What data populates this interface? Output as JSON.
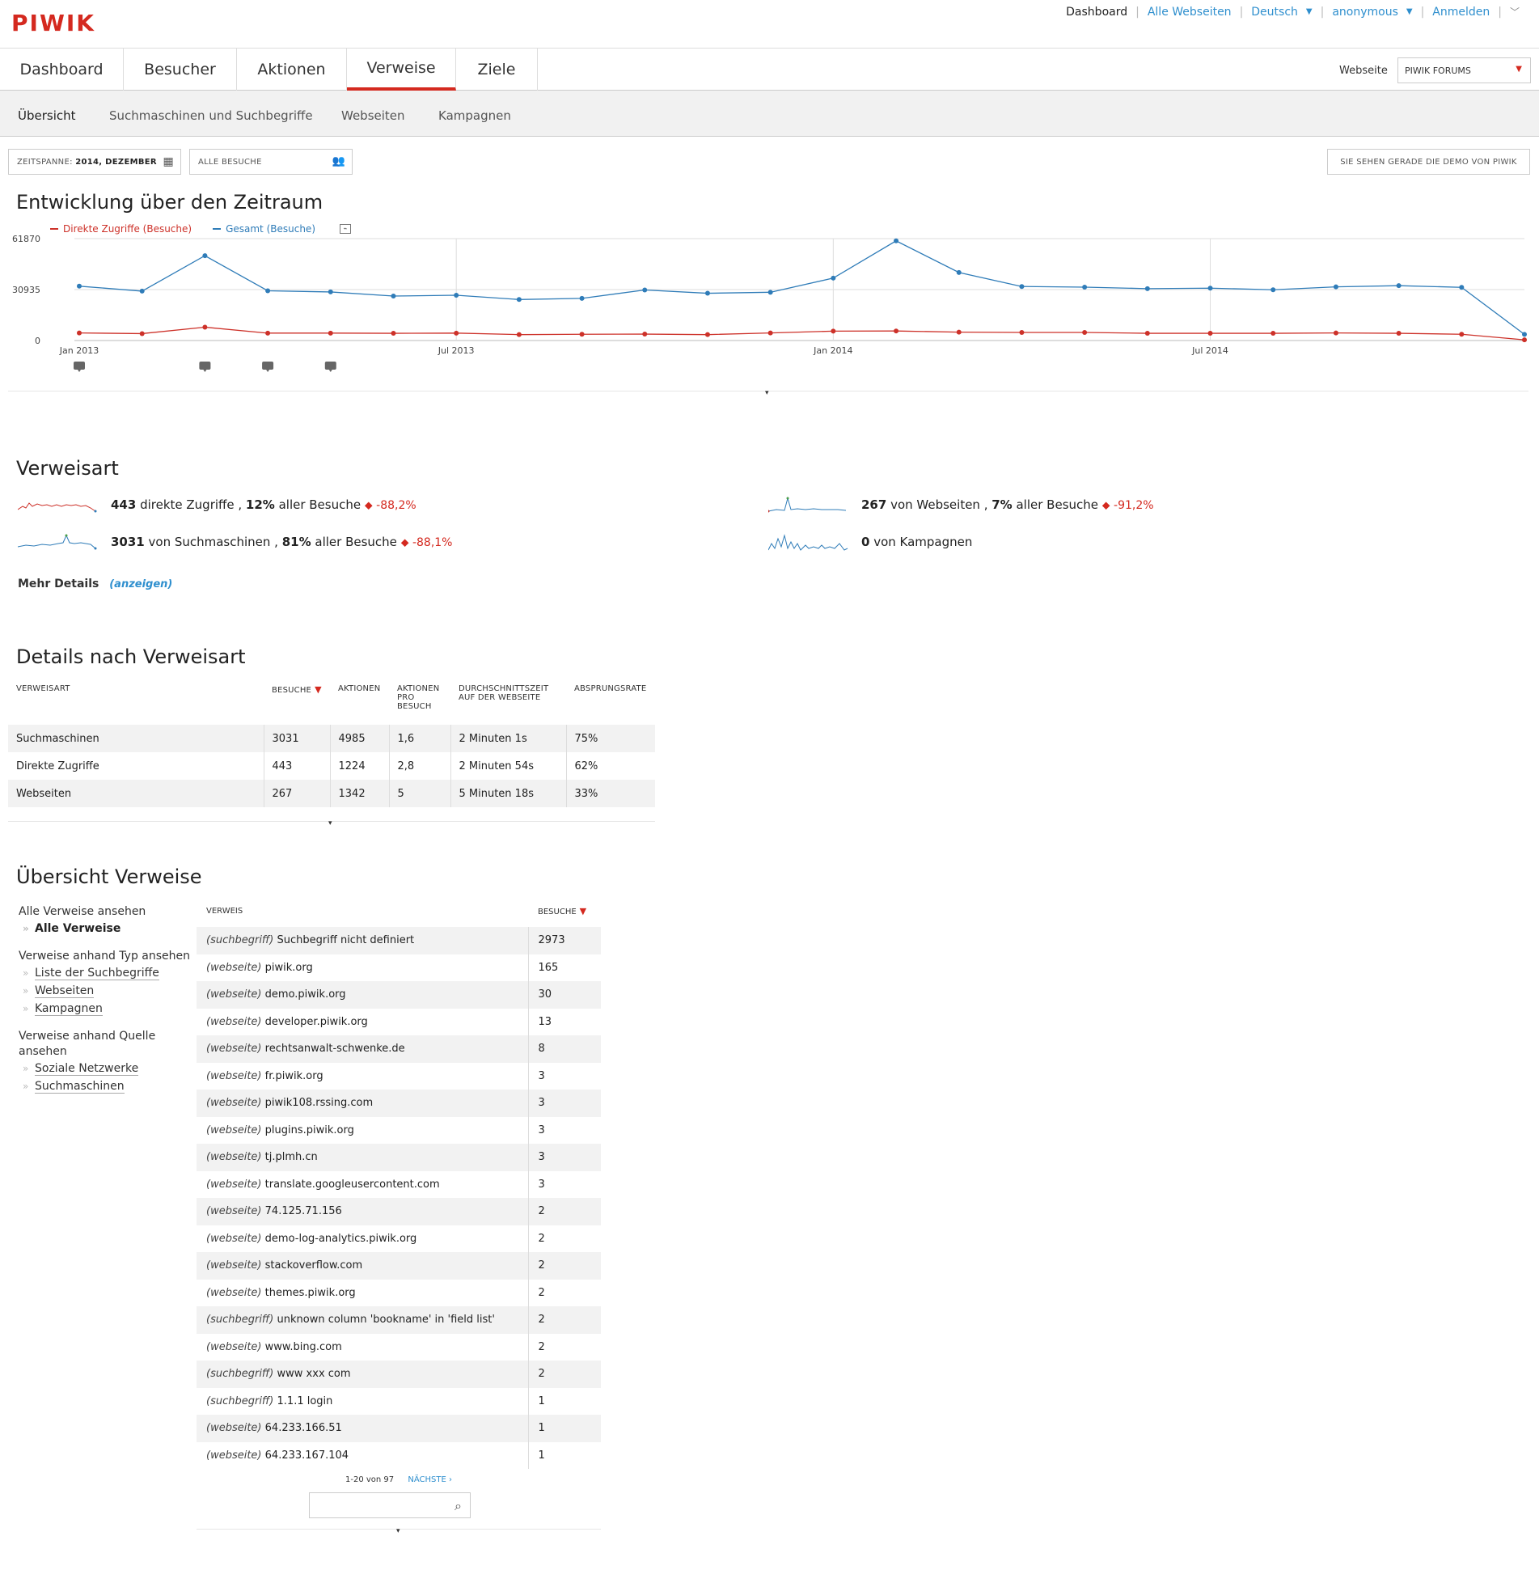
{
  "logo": "PIWIK",
  "toplinks": {
    "dashboard": "Dashboard",
    "all_sites": "Alle Webseiten",
    "language": "Deutsch",
    "user": "anonymous",
    "login": "Anmelden"
  },
  "mainnav": {
    "tabs": [
      {
        "label": "Dashboard"
      },
      {
        "label": "Besucher"
      },
      {
        "label": "Aktionen"
      },
      {
        "label": "Verweise"
      },
      {
        "label": "Ziele"
      }
    ],
    "active": "Verweise",
    "site_label": "Webseite",
    "site_value": "PIWIK FORUMS"
  },
  "subnav": {
    "items": [
      {
        "label": "Übersicht"
      },
      {
        "label": "Suchmaschinen und Suchbegriffe"
      },
      {
        "label": "Webseiten"
      },
      {
        "label": "Kampagnen"
      }
    ],
    "active": "Übersicht"
  },
  "period": {
    "label": "ZEITSPANNE:",
    "value": "2014, DEZEMBER",
    "segment": "ALLE BESUCHE",
    "demo_button": "SIE SEHEN GERADE DIE DEMO VON PIWIK"
  },
  "evolution": {
    "title": "Entwicklung über den Zeitraum"
  },
  "chart_data": {
    "type": "line",
    "x": [
      "Jan 2013",
      "Feb 2013",
      "Mar 2013",
      "Apr 2013",
      "May 2013",
      "Jun 2013",
      "Jul 2013",
      "Aug 2013",
      "Sep 2013",
      "Oct 2013",
      "Nov 2013",
      "Dec 2013",
      "Jan 2014",
      "Feb 2014",
      "Mar 2014",
      "Apr 2014",
      "May 2014",
      "Jun 2014",
      "Jul 2014",
      "Aug 2014",
      "Sep 2014",
      "Oct 2014",
      "Nov 2014",
      "Dec 2014"
    ],
    "x_tick_labels": [
      "Jan 2013",
      "Jul 2013",
      "Jan 2014",
      "Jul 2014"
    ],
    "y_tick_labels": [
      "61870",
      "30935",
      "0"
    ],
    "ylim": [
      0,
      61870
    ],
    "grid": true,
    "series": [
      {
        "name": "Direkte Zugriffe (Besuche)",
        "color": "#cd3129",
        "values": [
          4600,
          4200,
          8100,
          4500,
          4500,
          4400,
          4500,
          3600,
          3800,
          3900,
          3600,
          4600,
          5700,
          5800,
          5100,
          4900,
          4900,
          4400,
          4400,
          4400,
          4600,
          4400,
          3800,
          443
        ]
      },
      {
        "name": "Gesamt (Besuche)",
        "color": "#2f7cb8",
        "values": [
          33000,
          30000,
          51500,
          30200,
          29500,
          27000,
          27500,
          24900,
          25600,
          30700,
          28700,
          29300,
          37900,
          60500,
          41300,
          32800,
          32400,
          31500,
          31800,
          30800,
          32600,
          33300,
          32300,
          3741
        ]
      }
    ],
    "annotation_markers_at": [
      "Jan 2013",
      "Mar 2013",
      "Apr 2013",
      "May 2013"
    ]
  },
  "verweisart": {
    "title": "Verweisart",
    "items": [
      {
        "count": "443",
        "text": " direkte Zugriffe , ",
        "pct": "12%",
        "text2": " aller Besuche ",
        "change": "-88,2%"
      },
      {
        "count": "3031",
        "text": " von Suchmaschinen , ",
        "pct": "81%",
        "text2": " aller Besuche ",
        "change": "-88,1%"
      },
      {
        "count": "267",
        "text": " von Webseiten , ",
        "pct": "7%",
        "text2": " aller Besuche ",
        "change": "-91,2%"
      },
      {
        "count": "0",
        "text": " von Kampagnen",
        "pct": "",
        "text2": "",
        "change": ""
      }
    ],
    "more": "Mehr Details",
    "more_link": "(anzeigen)"
  },
  "details": {
    "title": "Details nach Verweisart",
    "headers": [
      "VERWEISART",
      "BESUCHE",
      "AKTIONEN",
      "AKTIONEN PRO BESUCH",
      "DURCHSCHNITTSZEIT AUF DER WEBSEITE",
      "ABSPRUNGSRATE"
    ],
    "rows": [
      [
        "Suchmaschinen",
        "3031",
        "4985",
        "1,6",
        "2 Minuten 1s",
        "75%"
      ],
      [
        "Direkte Zugriffe",
        "443",
        "1224",
        "2,8",
        "2 Minuten 54s",
        "62%"
      ],
      [
        "Webseiten",
        "267",
        "1342",
        "5",
        "5 Minuten 18s",
        "33%"
      ]
    ]
  },
  "overview": {
    "title": "Übersicht Verweise",
    "side": {
      "g1": "Alle Verweise ansehen",
      "g1_items": [
        "Alle Verweise"
      ],
      "g2": "Verweise anhand Typ ansehen",
      "g2_items": [
        "Liste der Suchbegriffe",
        "Webseiten",
        "Kampagnen"
      ],
      "g3": "Verweise anhand Quelle ansehen",
      "g3_items": [
        "Soziale Netzwerke",
        "Suchmaschinen"
      ]
    },
    "headers": [
      "VERWEIS",
      "BESUCHE"
    ],
    "rows": [
      {
        "type": "(suchbegriff)",
        "name": "Suchbegriff nicht definiert",
        "visits": "2973"
      },
      {
        "type": "(webseite)",
        "name": "piwik.org",
        "visits": "165"
      },
      {
        "type": "(webseite)",
        "name": "demo.piwik.org",
        "visits": "30"
      },
      {
        "type": "(webseite)",
        "name": "developer.piwik.org",
        "visits": "13"
      },
      {
        "type": "(webseite)",
        "name": "rechtsanwalt-schwenke.de",
        "visits": "8"
      },
      {
        "type": "(webseite)",
        "name": "fr.piwik.org",
        "visits": "3"
      },
      {
        "type": "(webseite)",
        "name": "piwik108.rssing.com",
        "visits": "3"
      },
      {
        "type": "(webseite)",
        "name": "plugins.piwik.org",
        "visits": "3"
      },
      {
        "type": "(webseite)",
        "name": "tj.plmh.cn",
        "visits": "3"
      },
      {
        "type": "(webseite)",
        "name": "translate.googleusercontent.com",
        "visits": "3"
      },
      {
        "type": "(webseite)",
        "name": "74.125.71.156",
        "visits": "2"
      },
      {
        "type": "(webseite)",
        "name": "demo-log-analytics.piwik.org",
        "visits": "2"
      },
      {
        "type": "(webseite)",
        "name": "stackoverflow.com",
        "visits": "2"
      },
      {
        "type": "(webseite)",
        "name": "themes.piwik.org",
        "visits": "2"
      },
      {
        "type": "(suchbegriff)",
        "name": "unknown column 'bookname' in 'field list'",
        "visits": "2"
      },
      {
        "type": "(webseite)",
        "name": "www.bing.com",
        "visits": "2"
      },
      {
        "type": "(suchbegriff)",
        "name": "www xxx com",
        "visits": "2"
      },
      {
        "type": "(suchbegriff)",
        "name": "1.1.1 login",
        "visits": "1"
      },
      {
        "type": "(webseite)",
        "name": "64.233.166.51",
        "visits": "1"
      },
      {
        "type": "(webseite)",
        "name": "64.233.167.104",
        "visits": "1"
      }
    ],
    "pager": "1-20 von 97",
    "next": "NÄCHSTE ›"
  }
}
